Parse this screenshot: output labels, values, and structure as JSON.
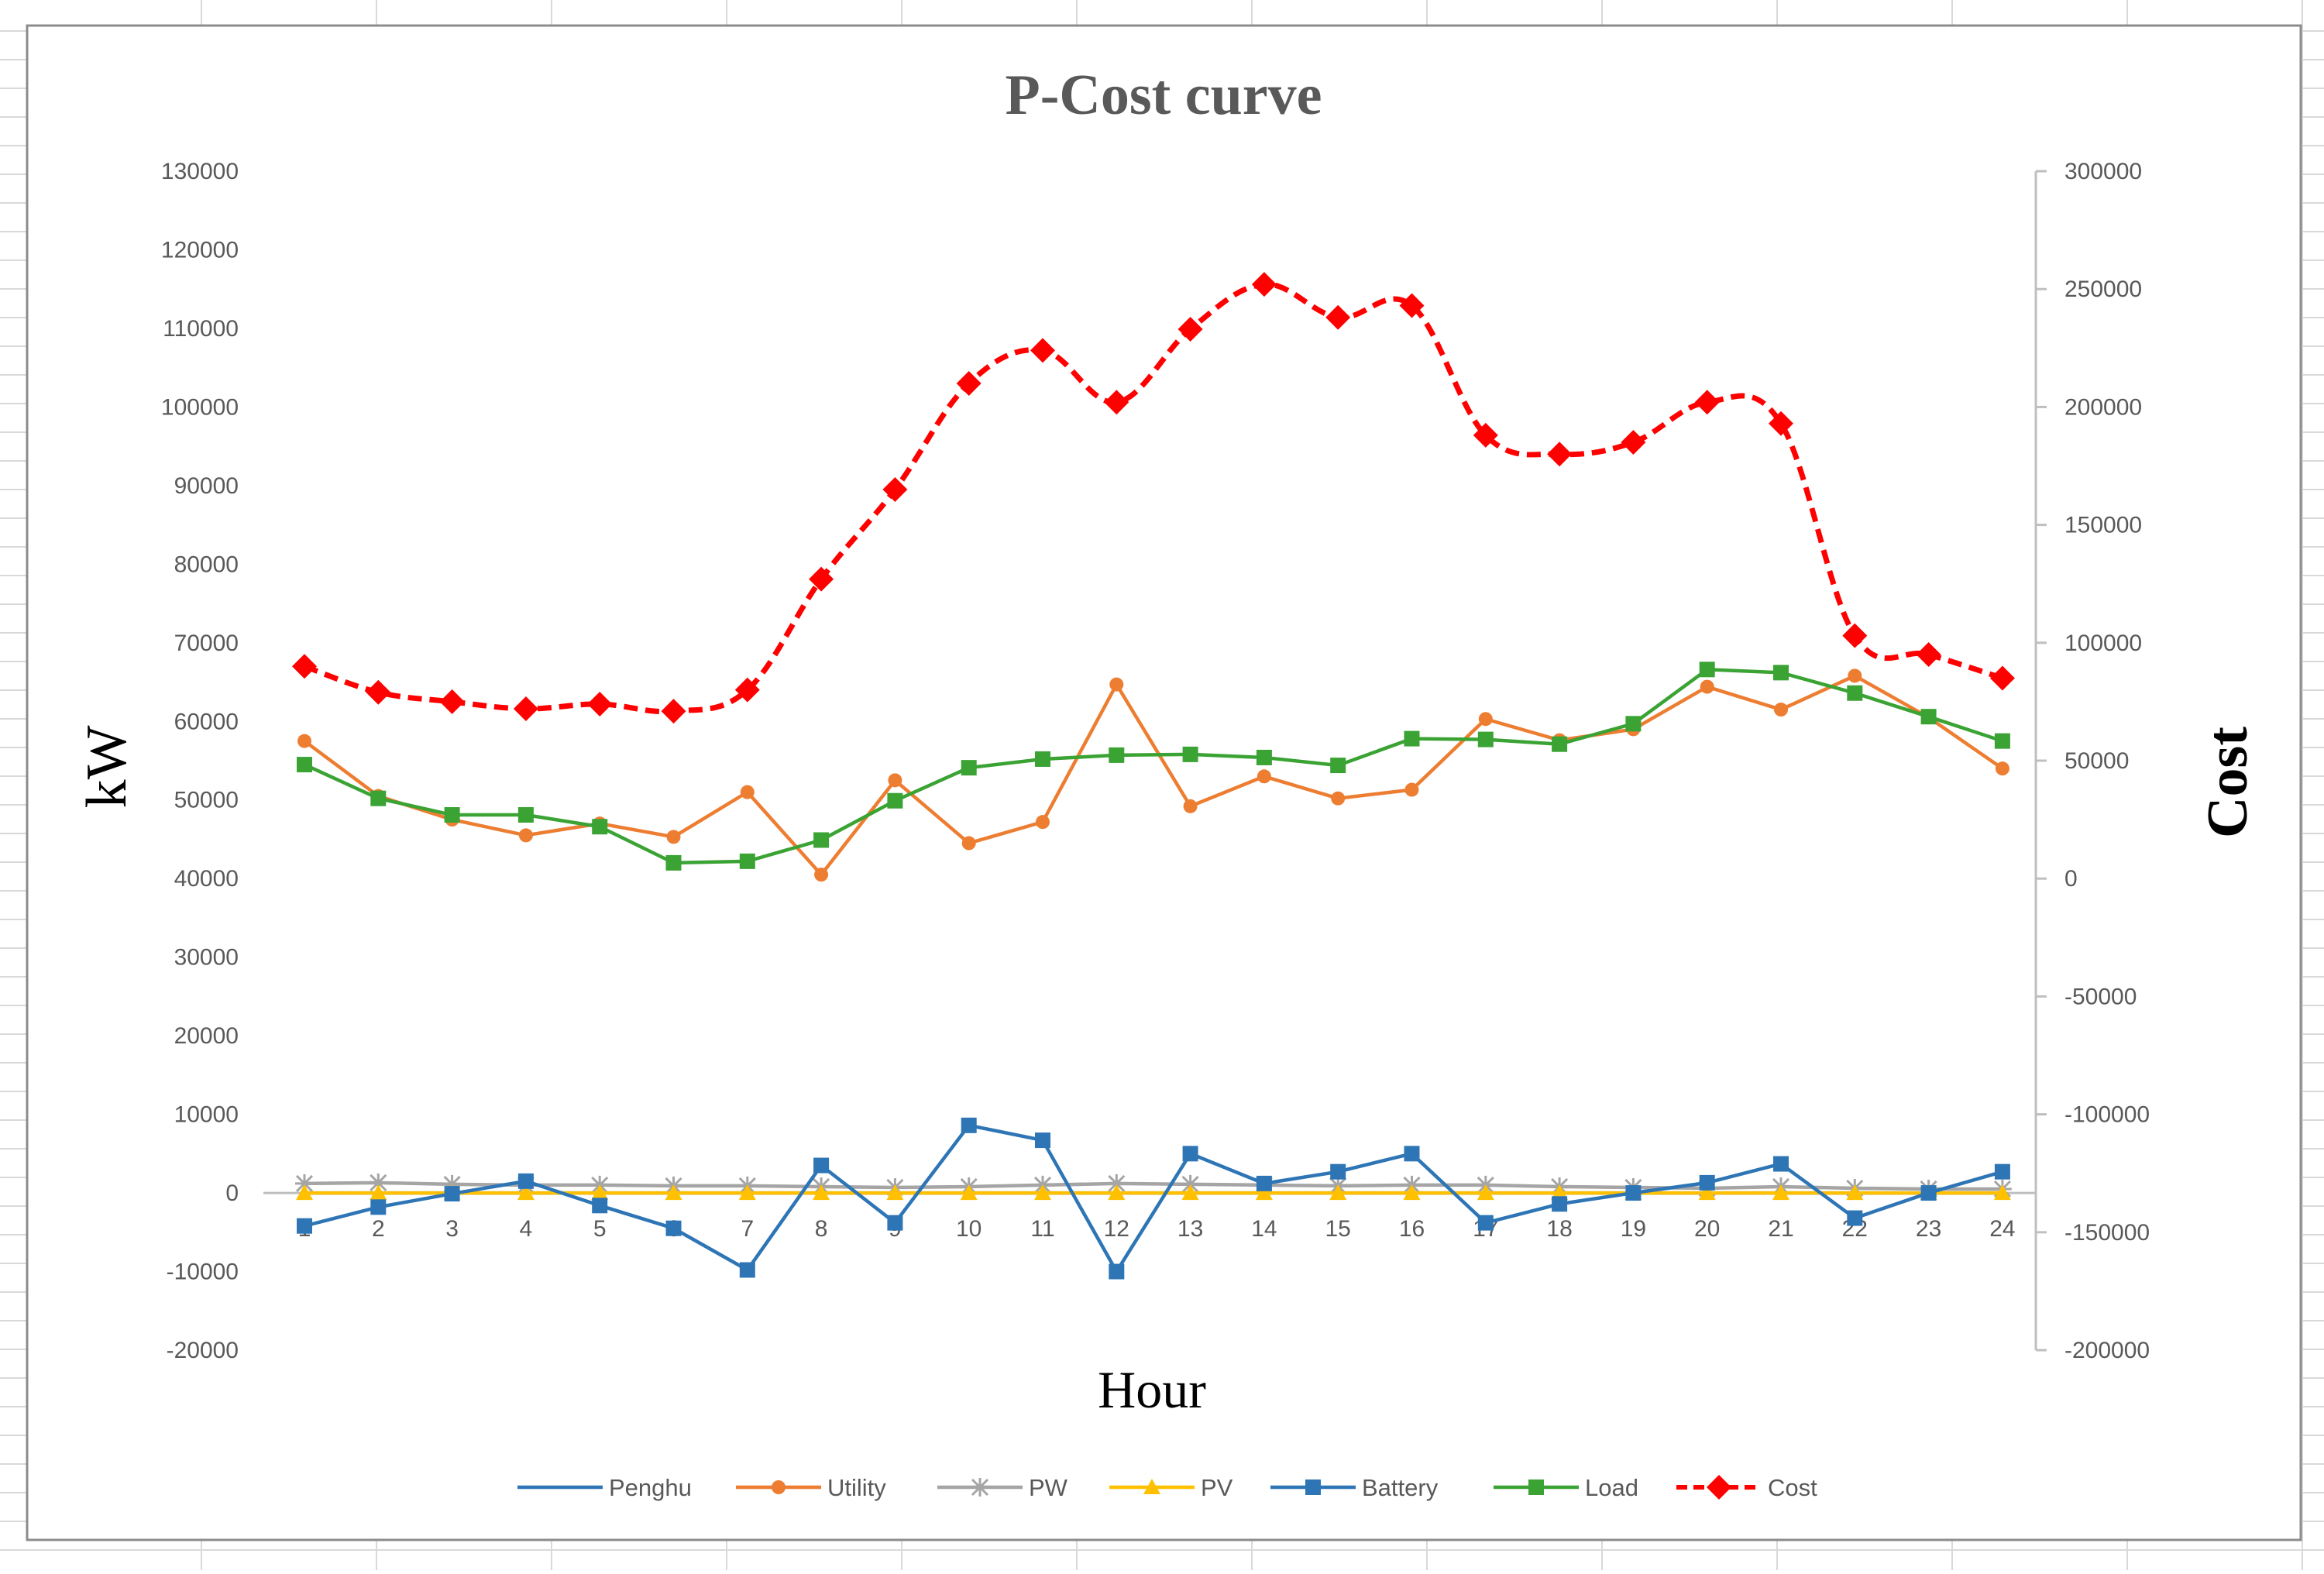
{
  "chart_data": {
    "type": "line",
    "title": "P-Cost curve",
    "xlabel": "Hour",
    "ylabel": "kW",
    "y2label": "Cost",
    "grid": false,
    "legend_position": "bottom",
    "ylim": [
      -20000,
      130000
    ],
    "y2lim": [
      -200000,
      300000
    ],
    "y_ticks": [
      -20000,
      -10000,
      0,
      10000,
      20000,
      30000,
      40000,
      50000,
      60000,
      70000,
      80000,
      90000,
      100000,
      110000,
      120000,
      130000
    ],
    "y2_ticks": [
      -200000,
      -150000,
      -100000,
      -50000,
      0,
      50000,
      100000,
      150000,
      200000,
      250000,
      300000
    ],
    "x": [
      1,
      2,
      3,
      4,
      5,
      6,
      7,
      8,
      9,
      10,
      11,
      12,
      13,
      14,
      15,
      16,
      17,
      18,
      19,
      20,
      21,
      22,
      23,
      24
    ],
    "series": [
      {
        "name": "Penghu",
        "color": "#2e75b6",
        "marker": "none",
        "axis": "left",
        "values": [
          0,
          0,
          0,
          0,
          0,
          0,
          0,
          0,
          0,
          0,
          0,
          0,
          0,
          0,
          0,
          0,
          0,
          0,
          0,
          0,
          0,
          0,
          0,
          0
        ]
      },
      {
        "name": "Utility",
        "color": "#ed7d31",
        "marker": "circle",
        "axis": "left",
        "values": [
          57500,
          50500,
          47500,
          45500,
          47000,
          45300,
          51000,
          40500,
          52500,
          44500,
          47200,
          64700,
          49200,
          53000,
          50200,
          51300,
          60300,
          57600,
          59000,
          64400,
          61500,
          65800,
          60500,
          54000
        ]
      },
      {
        "name": "PW",
        "color": "#a5a5a5",
        "marker": "star",
        "axis": "left",
        "values": [
          1200,
          1300,
          1100,
          1000,
          1000,
          900,
          900,
          800,
          700,
          800,
          1000,
          1200,
          1100,
          1000,
          900,
          1000,
          1000,
          800,
          700,
          600,
          800,
          600,
          500,
          500
        ]
      },
      {
        "name": "PV",
        "color": "#ffc000",
        "marker": "triangle",
        "axis": "left",
        "values": [
          0,
          0,
          0,
          0,
          0,
          0,
          0,
          0,
          0,
          0,
          0,
          0,
          0,
          0,
          0,
          0,
          0,
          0,
          0,
          0,
          0,
          0,
          0,
          0
        ]
      },
      {
        "name": "Battery",
        "color": "#2e75b6",
        "marker": "square",
        "axis": "left",
        "values": [
          -4200,
          -1800,
          -100,
          1500,
          -1600,
          -4500,
          -9800,
          3500,
          -3800,
          8600,
          6700,
          -10000,
          5000,
          1200,
          2700,
          5000,
          -3800,
          -1400,
          0,
          1300,
          3700,
          -3200,
          0,
          2700
        ]
      },
      {
        "name": "Load",
        "color": "#3aa334",
        "marker": "square",
        "axis": "left",
        "values": [
          54500,
          50200,
          48100,
          48100,
          46600,
          42000,
          42200,
          44900,
          49900,
          54100,
          55200,
          55700,
          55800,
          55400,
          54400,
          57800,
          57700,
          57100,
          59700,
          66600,
          66200,
          63600,
          60600,
          57500
        ]
      },
      {
        "name": "Cost",
        "color": "#ff0000",
        "marker": "diamond",
        "dash": true,
        "axis": "right",
        "values": [
          90000,
          79000,
          75000,
          72000,
          74000,
          71000,
          80000,
          127000,
          165000,
          210000,
          224000,
          202000,
          233000,
          252000,
          238000,
          243000,
          188000,
          180000,
          185000,
          202000,
          193000,
          103000,
          95000,
          85000
        ]
      }
    ]
  }
}
